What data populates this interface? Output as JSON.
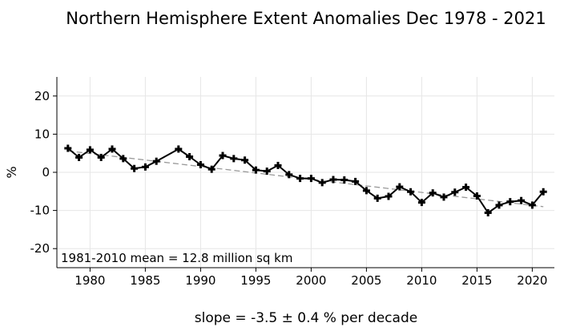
{
  "chart_data": {
    "type": "line",
    "title": "Northern Hemisphere Extent Anomalies Dec 1978 - 2021",
    "xlabel": "",
    "ylabel": "%",
    "xlim": [
      1977,
      2022
    ],
    "ylim": [
      -25,
      25
    ],
    "xticks": [
      1980,
      1985,
      1990,
      1995,
      2000,
      2005,
      2010,
      2015,
      2020
    ],
    "yticks": [
      20,
      10,
      0,
      -10,
      -20
    ],
    "grid": true,
    "annotation": "1981-2010 mean = 12.8 million sq km",
    "slope_text": "slope = -3.5 ± 0.4 % per decade",
    "series": [
      {
        "name": "anomaly",
        "color": "#000000",
        "marker": "plus",
        "x": [
          1978,
          1979,
          1980,
          1981,
          1982,
          1983,
          1984,
          1985,
          1986,
          1988,
          1989,
          1990,
          1991,
          1992,
          1993,
          1994,
          1995,
          1996,
          1997,
          1998,
          1999,
          2000,
          2001,
          2002,
          2003,
          2004,
          2005,
          2006,
          2007,
          2008,
          2009,
          2010,
          2011,
          2012,
          2013,
          2014,
          2015,
          2016,
          2017,
          2018,
          2019,
          2020,
          2021
        ],
        "values": [
          6.3,
          3.9,
          5.9,
          3.9,
          6.1,
          3.6,
          1.0,
          1.4,
          2.9,
          6.1,
          4.1,
          2.0,
          0.8,
          4.4,
          3.6,
          3.2,
          0.6,
          0.3,
          1.8,
          -0.6,
          -1.6,
          -1.6,
          -2.7,
          -1.9,
          -2.0,
          -2.4,
          -4.8,
          -6.8,
          -6.3,
          -3.8,
          -5.1,
          -7.9,
          -5.4,
          -6.5,
          -5.2,
          -3.9,
          -6.2,
          -10.6,
          -8.6,
          -7.7,
          -7.4,
          -8.6,
          -5.1
        ]
      },
      {
        "name": "trend",
        "color": "#999999",
        "dashed": true,
        "x": [
          1978,
          2021
        ],
        "values": [
          5.6,
          -9.0
        ]
      }
    ]
  }
}
